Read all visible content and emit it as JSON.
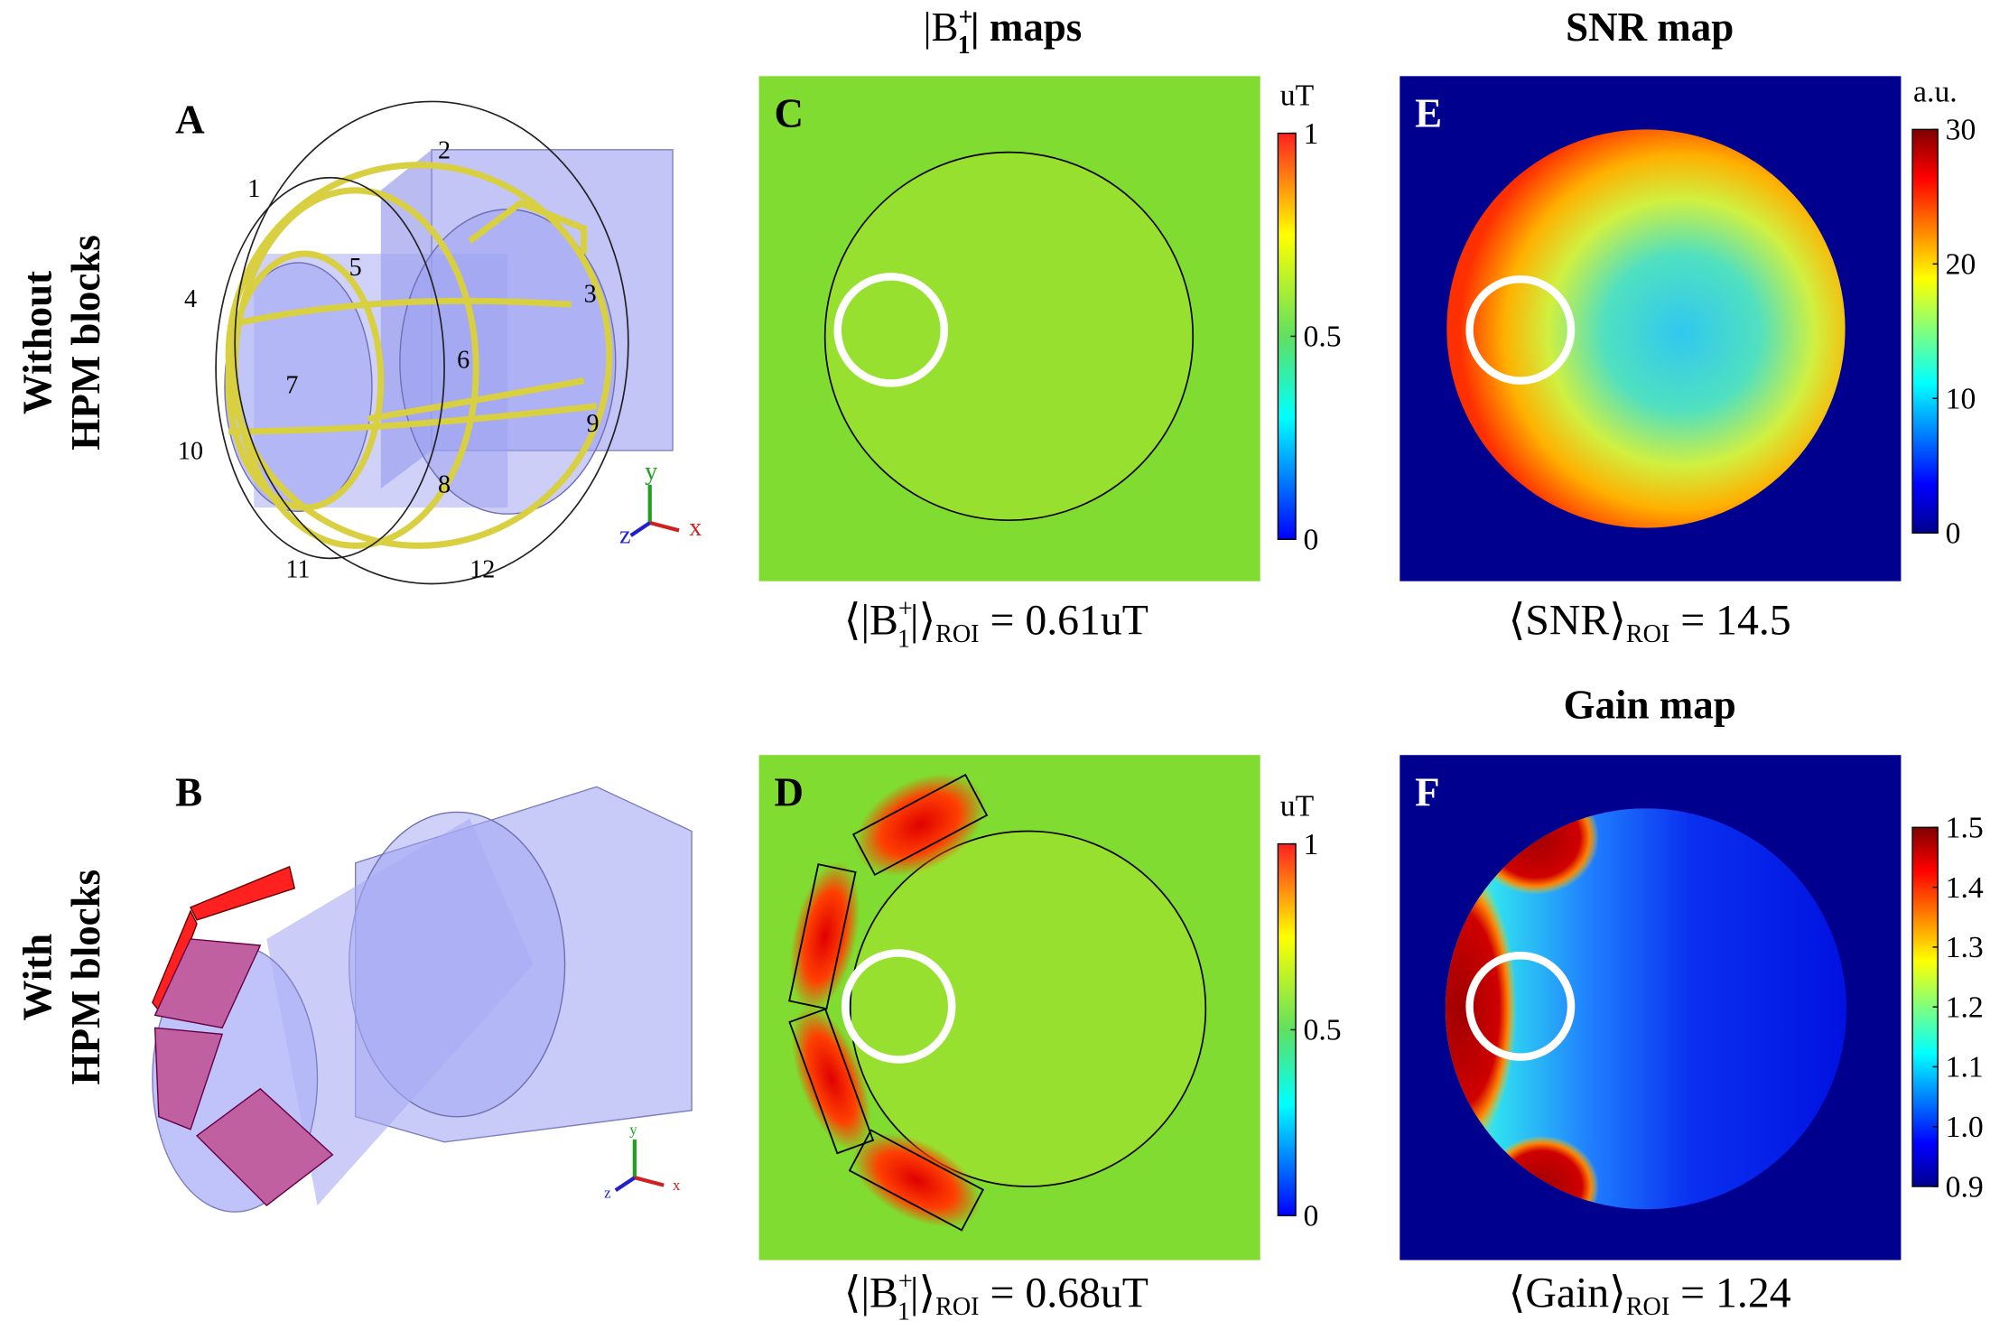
{
  "row_labels": [
    [
      "Without",
      "HPM blocks"
    ],
    [
      "With",
      "HPM blocks"
    ]
  ],
  "column_titles": {
    "b1": [
      "|B",
      "+",
      "1",
      "| maps"
    ],
    "snr": "SNR map",
    "gain": "Gain map"
  },
  "panels": {
    "A": {
      "label": "A",
      "coil_numbers": [
        "1",
        "2",
        "3",
        "4",
        "5",
        "6",
        "7",
        "8",
        "9",
        "10",
        "11",
        "12"
      ],
      "axes": [
        "x",
        "y",
        "z"
      ]
    },
    "B": {
      "label": "B",
      "axes": [
        "x",
        "y",
        "z"
      ]
    },
    "C": {
      "label": "C",
      "colorbar": {
        "unit": "uT",
        "lim": [
          0,
          1
        ],
        "ticks": [
          0,
          0.5,
          1
        ]
      },
      "annotation": [
        "⟨|B",
        "+",
        "1",
        "|⟩",
        "ROI",
        " = 0.61uT"
      ]
    },
    "D": {
      "label": "D",
      "colorbar": {
        "unit": "uT",
        "lim": [
          0,
          1
        ],
        "ticks": [
          0,
          0.5,
          1
        ]
      },
      "annotation": [
        "⟨|B",
        "+",
        "1",
        "|⟩",
        "ROI",
        " = 0.68uT"
      ]
    },
    "E": {
      "label": "E",
      "colorbar": {
        "unit": "a.u.",
        "lim": [
          0,
          30
        ],
        "ticks": [
          0,
          10,
          20,
          30
        ]
      },
      "annotation": [
        "⟨SNR⟩",
        "ROI",
        " = 14.5"
      ]
    },
    "F": {
      "label": "F",
      "colorbar": {
        "lim": [
          0.9,
          1.5
        ],
        "ticks": [
          0.9,
          {
            "value": 1.0,
            "label": "1.0"
          },
          1.1,
          1.2,
          1.3,
          1.4,
          1.5
        ]
      },
      "annotation": [
        "⟨Gain⟩",
        "ROI",
        " = 1.24"
      ]
    }
  }
}
